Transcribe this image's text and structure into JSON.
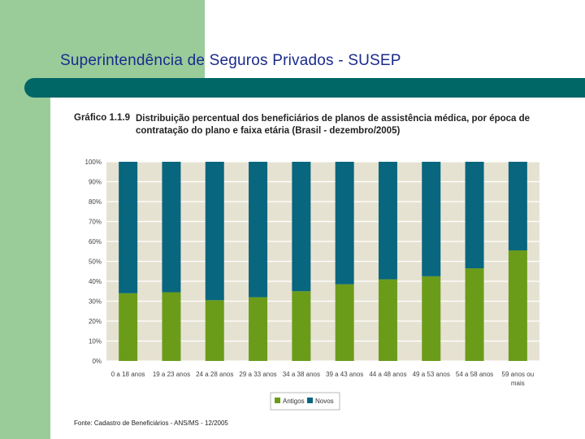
{
  "slide": {
    "title": "Superintendência de Seguros Privados - SUSEP"
  },
  "figure": {
    "label": "Gráfico 1.1.9",
    "title": "Distribuição percentual dos beneficiários de planos de assistência médica, por época de contratação do plano e faixa etária (Brasil - dezembro/2005)",
    "source": "Fonte: Cadastro de Beneficiários - ANS/MS - 12/2005"
  },
  "colors": {
    "antigos": "#6a9c1a",
    "novos": "#08667e",
    "plot_bg": "#e6e2d2",
    "grid": "#ffffff",
    "title_bar": "#006666",
    "slide_bg_green": "#99cc99"
  },
  "chart_data": {
    "type": "bar",
    "stacked": true,
    "title": "Distribuição percentual dos beneficiários de planos de assistência médica, por época de contratação do plano e faixa etária (Brasil - dezembro/2005)",
    "xlabel": "",
    "ylabel": "",
    "ylim": [
      0,
      100
    ],
    "yticks": [
      "0%",
      "10%",
      "20%",
      "30%",
      "40%",
      "50%",
      "60%",
      "70%",
      "80%",
      "90%",
      "100%"
    ],
    "categories": [
      "0 a 18 anos",
      "19 a 23 anos",
      "24 a 28 anos",
      "29 a 33 anos",
      "34 a 38 anos",
      "39 a 43 anos",
      "44 a 48 anos",
      "49 a 53 anos",
      "54 a 58 anos",
      "59 anos ou mais"
    ],
    "series": [
      {
        "name": "Antigos",
        "values": [
          34,
          34.5,
          30.5,
          32,
          35,
          38.5,
          41,
          42.5,
          46.5,
          55.5
        ]
      },
      {
        "name": "Novos",
        "values": [
          66,
          65.5,
          69.5,
          68,
          65,
          61.5,
          59,
          57.5,
          53.5,
          44.5
        ]
      }
    ],
    "legend": {
      "position": "bottom",
      "entries": [
        "Antigos",
        "Novos"
      ]
    },
    "grid": true
  }
}
